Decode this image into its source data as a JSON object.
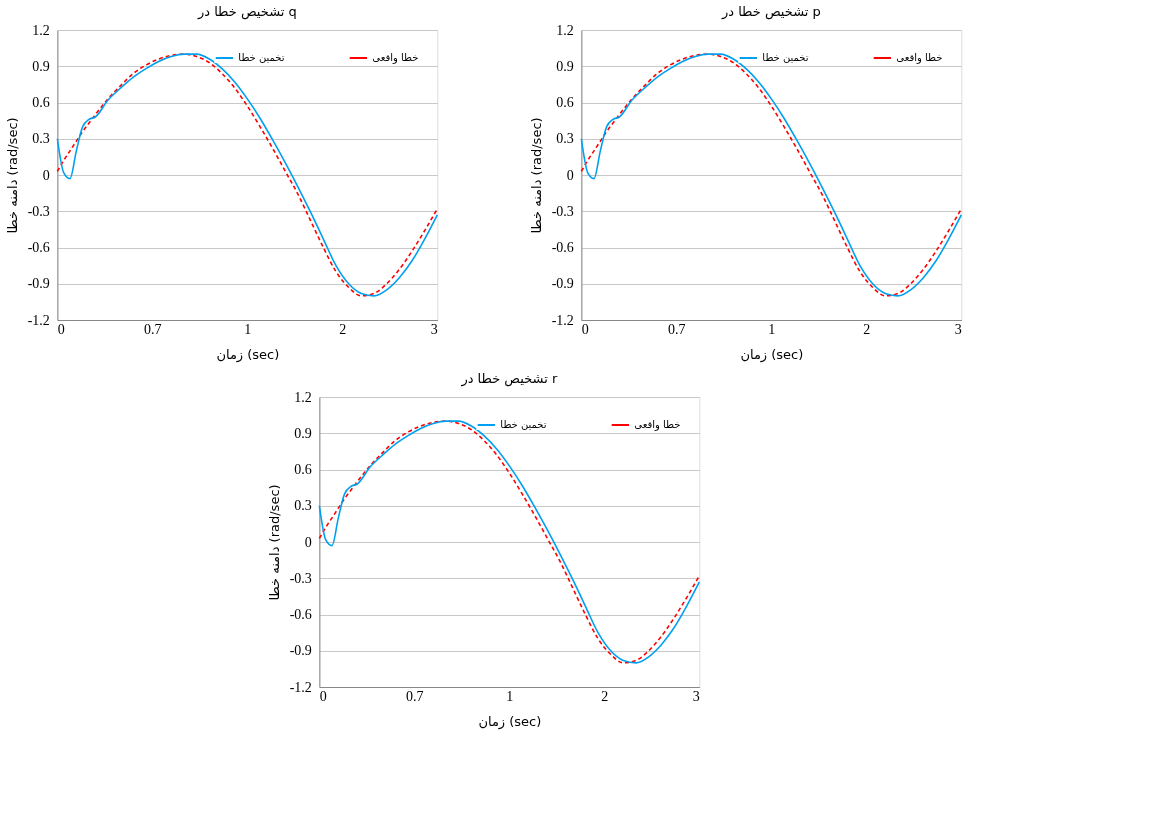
{
  "chart_data": [
    {
      "type": "line",
      "title": "تشخیص خطا در q",
      "xlabel": "زمان (sec)",
      "ylabel": "دامنه خطا (rad/sec)",
      "legend": "top right",
      "grid": "y",
      "marker": "none",
      "x": [
        0,
        0.05,
        0.1,
        0.15,
        0.2,
        0.25,
        0.3,
        0.4,
        0.5,
        0.6,
        0.7,
        0.8,
        0.9,
        1.0,
        1.1,
        1.2,
        1.3,
        1.4,
        1.5,
        1.6,
        1.7,
        1.8,
        1.9,
        2.0,
        2.1,
        2.2,
        2.3,
        2.4,
        2.5,
        2.6,
        2.7,
        2.8,
        2.9,
        3.0
      ],
      "xlim": [
        0,
        3
      ],
      "xticks": [
        0,
        {
          "value": 0.75,
          "label": "0.7"
        },
        {
          "value": 1.5,
          "label": "1"
        },
        {
          "value": 2.25,
          "label": "2"
        },
        3
      ],
      "ylim": [
        -1.2,
        1.2
      ],
      "yticks": [
        -1.2,
        -0.9,
        -0.6,
        -0.3,
        0,
        0.3,
        0.6,
        0.9,
        1.2
      ],
      "series": [
        {
          "name": "خطا واقعی",
          "color": "#ff0000",
          "line_style": "dashed",
          "values": [
            0.03,
            0.12,
            0.2,
            0.28,
            0.36,
            0.43,
            0.5,
            0.63,
            0.74,
            0.84,
            0.91,
            0.96,
            0.99,
            1.0,
            0.98,
            0.93,
            0.84,
            0.72,
            0.57,
            0.4,
            0.22,
            0.03,
            -0.16,
            -0.38,
            -0.6,
            -0.8,
            -0.93,
            -1.0,
            -0.98,
            -0.9,
            -0.78,
            -0.63,
            -0.46,
            -0.28
          ]
        },
        {
          "name": "تخمین خطا",
          "color": "#00a0f0",
          "line_style": "solid",
          "values": [
            0.3,
            0.02,
            -0.03,
            0.2,
            0.4,
            0.46,
            0.48,
            0.62,
            0.72,
            0.81,
            0.88,
            0.94,
            0.98,
            1.0,
            1.0,
            0.96,
            0.88,
            0.77,
            0.63,
            0.47,
            0.29,
            0.1,
            -0.1,
            -0.31,
            -0.53,
            -0.75,
            -0.9,
            -0.98,
            -1.0,
            -0.95,
            -0.85,
            -0.71,
            -0.53,
            -0.33
          ]
        }
      ]
    },
    {
      "type": "line",
      "title": "تشخیص خطا در p",
      "xlabel": "زمان (sec)",
      "ylabel": "دامنه خطا (rad/sec)",
      "legend": "top right",
      "grid": "y",
      "marker": "none",
      "x": [
        0,
        0.05,
        0.1,
        0.15,
        0.2,
        0.25,
        0.3,
        0.4,
        0.5,
        0.6,
        0.7,
        0.8,
        0.9,
        1.0,
        1.1,
        1.2,
        1.3,
        1.4,
        1.5,
        1.6,
        1.7,
        1.8,
        1.9,
        2.0,
        2.1,
        2.2,
        2.3,
        2.4,
        2.5,
        2.6,
        2.7,
        2.8,
        2.9,
        3.0
      ],
      "xlim": [
        0,
        3
      ],
      "xticks": [
        0,
        {
          "value": 0.75,
          "label": "0.7"
        },
        {
          "value": 1.5,
          "label": "1"
        },
        {
          "value": 2.25,
          "label": "2"
        },
        3
      ],
      "ylim": [
        -1.2,
        1.2
      ],
      "yticks": [
        -1.2,
        -0.9,
        -0.6,
        -0.3,
        0,
        0.3,
        0.6,
        0.9,
        1.2
      ],
      "series": [
        {
          "name": "خطا واقعی",
          "color": "#ff0000",
          "line_style": "dashed",
          "values": [
            0.03,
            0.12,
            0.2,
            0.28,
            0.36,
            0.43,
            0.5,
            0.63,
            0.74,
            0.84,
            0.91,
            0.96,
            0.99,
            1.0,
            0.98,
            0.93,
            0.84,
            0.72,
            0.57,
            0.4,
            0.22,
            0.03,
            -0.16,
            -0.38,
            -0.6,
            -0.8,
            -0.93,
            -1.0,
            -0.98,
            -0.9,
            -0.78,
            -0.63,
            -0.46,
            -0.28
          ]
        },
        {
          "name": "تخمین خطا",
          "color": "#00a0f0",
          "line_style": "solid",
          "values": [
            0.3,
            0.02,
            -0.03,
            0.2,
            0.4,
            0.46,
            0.48,
            0.62,
            0.72,
            0.81,
            0.88,
            0.94,
            0.98,
            1.0,
            1.0,
            0.96,
            0.88,
            0.77,
            0.63,
            0.47,
            0.29,
            0.1,
            -0.1,
            -0.31,
            -0.53,
            -0.75,
            -0.9,
            -0.98,
            -1.0,
            -0.95,
            -0.85,
            -0.71,
            -0.53,
            -0.33
          ]
        }
      ]
    },
    {
      "type": "line",
      "title": "تشخیص خطا در r",
      "xlabel": "زمان (sec)",
      "ylabel": "دامنه خطا (rad/sec)",
      "legend": "top right",
      "grid": "y",
      "marker": "none",
      "x": [
        0,
        0.05,
        0.1,
        0.15,
        0.2,
        0.25,
        0.3,
        0.4,
        0.5,
        0.6,
        0.7,
        0.8,
        0.9,
        1.0,
        1.1,
        1.2,
        1.3,
        1.4,
        1.5,
        1.6,
        1.7,
        1.8,
        1.9,
        2.0,
        2.1,
        2.2,
        2.3,
        2.4,
        2.5,
        2.6,
        2.7,
        2.8,
        2.9,
        3.0
      ],
      "xlim": [
        0,
        3
      ],
      "xticks": [
        0,
        {
          "value": 0.75,
          "label": "0.7"
        },
        {
          "value": 1.5,
          "label": "1"
        },
        {
          "value": 2.25,
          "label": "2"
        },
        3
      ],
      "ylim": [
        -1.2,
        1.2
      ],
      "yticks": [
        -1.2,
        -0.9,
        -0.6,
        -0.3,
        0,
        0.3,
        0.6,
        0.9,
        1.2
      ],
      "series": [
        {
          "name": "خطا واقعی",
          "color": "#ff0000",
          "line_style": "dashed",
          "values": [
            0.03,
            0.12,
            0.2,
            0.28,
            0.36,
            0.43,
            0.5,
            0.63,
            0.74,
            0.84,
            0.91,
            0.96,
            0.99,
            1.0,
            0.98,
            0.93,
            0.84,
            0.72,
            0.57,
            0.4,
            0.22,
            0.03,
            -0.16,
            -0.38,
            -0.6,
            -0.8,
            -0.93,
            -1.0,
            -0.98,
            -0.9,
            -0.78,
            -0.63,
            -0.46,
            -0.28
          ]
        },
        {
          "name": "تخمین خطا",
          "color": "#00a0f0",
          "line_style": "solid",
          "values": [
            0.3,
            0.02,
            -0.03,
            0.2,
            0.4,
            0.46,
            0.48,
            0.62,
            0.72,
            0.81,
            0.88,
            0.94,
            0.98,
            1.0,
            1.0,
            0.96,
            0.88,
            0.77,
            0.63,
            0.47,
            0.29,
            0.1,
            -0.1,
            -0.31,
            -0.53,
            -0.75,
            -0.9,
            -0.98,
            -1.0,
            -0.95,
            -0.85,
            -0.71,
            -0.53,
            -0.33
          ]
        }
      ]
    }
  ]
}
